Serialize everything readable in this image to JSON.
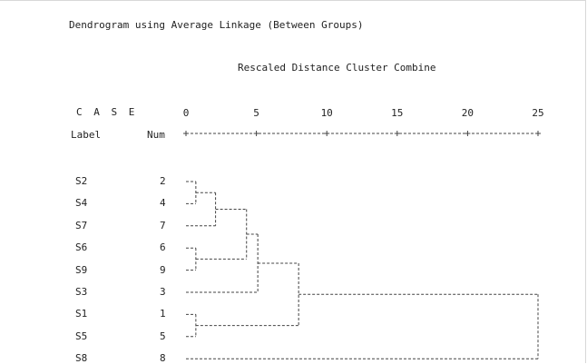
{
  "chart_data": {
    "type": "dendrogram",
    "title": "Dendrogram using Average Linkage (Between Groups)",
    "xlabel": "Rescaled Distance Cluster Combine",
    "case_header": "C A S E",
    "label_header": "Label",
    "num_header": "Num",
    "xlim": [
      0,
      25
    ],
    "xticks": [
      "0",
      "5",
      "10",
      "15",
      "20",
      "25"
    ],
    "leaves": [
      {
        "label": "S2",
        "num": "2"
      },
      {
        "label": "S4",
        "num": "4"
      },
      {
        "label": "S7",
        "num": "7"
      },
      {
        "label": "S6",
        "num": "6"
      },
      {
        "label": "S9",
        "num": "9"
      },
      {
        "label": "S3",
        "num": "3"
      },
      {
        "label": "S1",
        "num": "1"
      },
      {
        "label": "S5",
        "num": "5"
      },
      {
        "label": "S8",
        "num": "8"
      }
    ],
    "merges": [
      {
        "a": "L0",
        "b": "L1",
        "height": 0.7,
        "id": "C1"
      },
      {
        "a": "L3",
        "b": "L4",
        "height": 0.7,
        "id": "C2"
      },
      {
        "a": "L6",
        "b": "L7",
        "height": 0.7,
        "id": "C3"
      },
      {
        "a": "C1",
        "b": "L2",
        "height": 2.1,
        "id": "C4"
      },
      {
        "a": "C4",
        "b": "C2",
        "height": 4.3,
        "id": "C5"
      },
      {
        "a": "C5",
        "b": "L5",
        "height": 5.1,
        "id": "C6"
      },
      {
        "a": "C6",
        "b": "C3",
        "height": 8.0,
        "id": "C7"
      },
      {
        "a": "C7",
        "b": "L8",
        "height": 25.0,
        "id": "C8"
      }
    ],
    "grid": false,
    "legend": "none"
  },
  "colors": {
    "line": "#444444",
    "text": "#222222"
  }
}
